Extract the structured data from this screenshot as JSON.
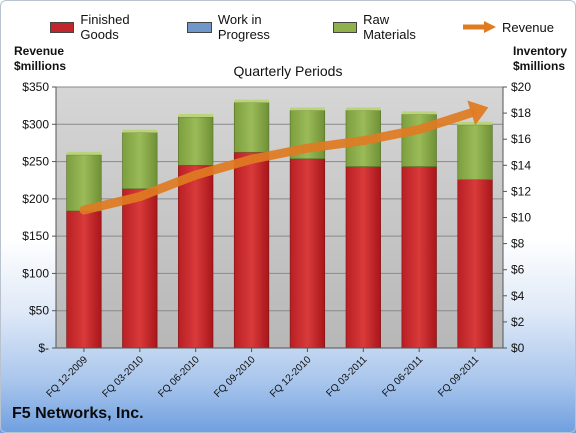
{
  "chart_data": {
    "type": "bar",
    "title": "Quarterly Periods",
    "company": "F5 Networks, Inc.",
    "left_axis_label": [
      "Revenue",
      "$millions"
    ],
    "right_axis_label": [
      "Inventory",
      "$millions"
    ],
    "categories": [
      "FQ 12-2009",
      "FQ 03-2010",
      "FQ 06-2010",
      "FQ 09-2010",
      "FQ 12-2010",
      "FQ 03-2011",
      "FQ 06-2011",
      "FQ 09-2011"
    ],
    "left_ticks": [
      "$-",
      "$50",
      "$100",
      "$150",
      "$200",
      "$250",
      "$300",
      "$350"
    ],
    "right_ticks": [
      "$0",
      "$2",
      "$4",
      "$6",
      "$8",
      "$10",
      "$12",
      "$14",
      "$16",
      "$18",
      "$20"
    ],
    "ylim_left": [
      0,
      350
    ],
    "ylim_right": [
      0,
      20
    ],
    "series": [
      {
        "name": "Finished Goods",
        "axis": "right",
        "values": [
          10.5,
          12.2,
          14.0,
          15.0,
          14.5,
          13.9,
          13.9,
          12.9
        ],
        "color": "#c0262b"
      },
      {
        "name": "Work in Progress",
        "axis": "right",
        "values": [
          0,
          0,
          0,
          0,
          0,
          0,
          0,
          0
        ],
        "color": "#4f81bd"
      },
      {
        "name": "Raw Materials",
        "axis": "right",
        "values": [
          4.3,
          4.3,
          3.7,
          3.8,
          3.7,
          4.3,
          4.0,
          4.2
        ],
        "color": "#8fb04a"
      },
      {
        "name": "Revenue",
        "axis": "left",
        "values": [
          185,
          203,
          232,
          253,
          268,
          278,
          293,
          317
        ],
        "color": "#e07b22"
      }
    ],
    "legend_position": "top",
    "plot_background": "#c0c0c0"
  }
}
